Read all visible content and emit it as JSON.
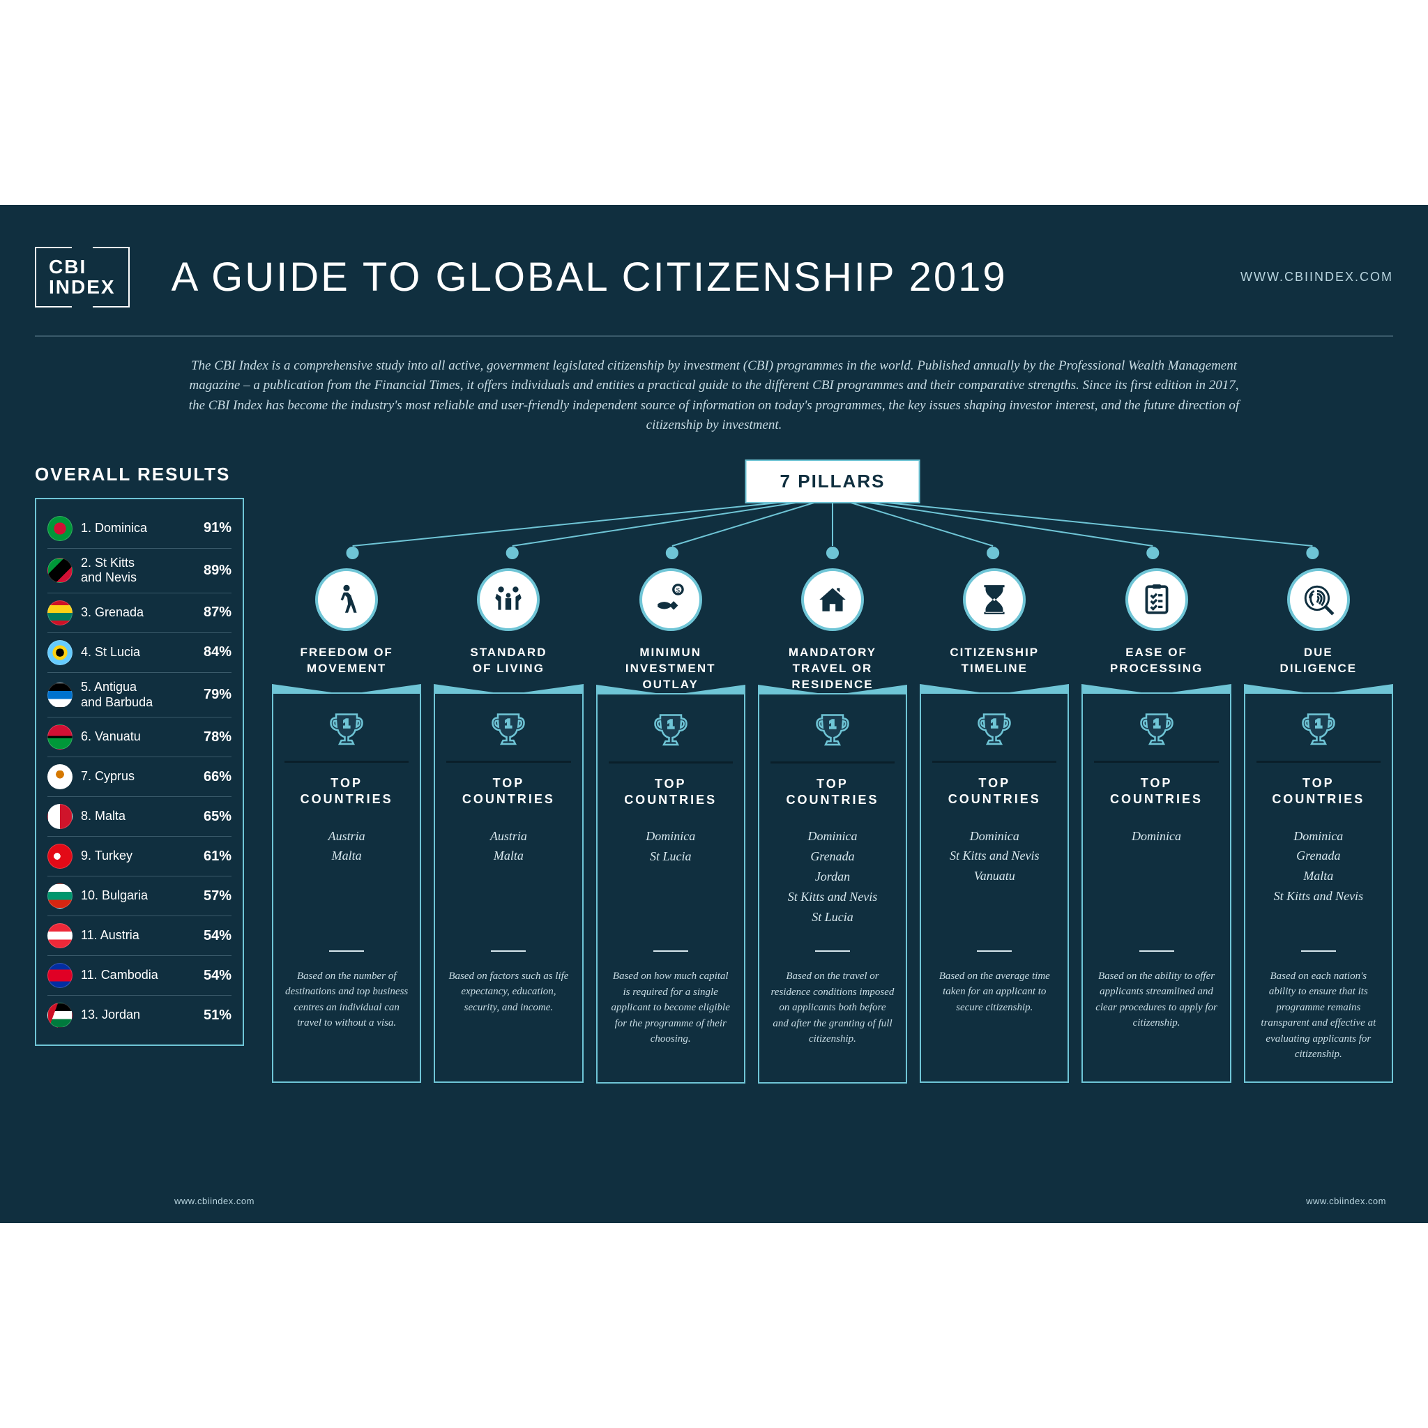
{
  "logo": "CBI\nINDEX",
  "title": "A GUIDE TO GLOBAL CITIZENSHIP 2019",
  "url": "WWW.CBIINDEX.COM",
  "url_small": "www.cbiindex.com",
  "intro": "The CBI Index is a comprehensive study into all active, government legislated citizenship by investment (CBI) programmes in the world. Published annually by the Professional Wealth Management magazine – a publication from the Financial Times, it offers individuals and entities a practical guide to the different CBI programmes and their comparative strengths. Since its first edition in 2017, the CBI Index has become the industry's most reliable and user-friendly independent source of information on today's programmes, the key issues shaping investor interest, and the future direction of citizenship by investment.",
  "sidebar_title": "OVERALL RESULTS",
  "pillars_hub": "7 PILLARS",
  "top_countries_label": "TOP\nCOUNTRIES",
  "results": [
    {
      "rank": "1.",
      "name": "Dominica",
      "pct": "91%",
      "flag": "radial-gradient(circle at center,#d21034 36%,transparent 36%),linear-gradient(#009739,#009739)"
    },
    {
      "rank": "2.",
      "name": "St Kitts\nand Nevis",
      "pct": "89%",
      "flag": "linear-gradient(135deg,#009739 33%,#000 33% 67%,#d21034 67%)"
    },
    {
      "rank": "3.",
      "name": "Grenada",
      "pct": "87%",
      "flag": "linear-gradient(#ce1126 18%,#fcd116 18% 50%,#007a5e 50% 82%,#ce1126 82%)"
    },
    {
      "rank": "4.",
      "name": "St Lucia",
      "pct": "84%",
      "flag": "radial-gradient(circle at center,#000 24%,#fcd116 24% 44%,transparent 44%),linear-gradient(#66ccff,#66ccff)"
    },
    {
      "rank": "5.",
      "name": "Antigua\nand Barbuda",
      "pct": "79%",
      "flag": "linear-gradient(#000 33%,#0072ce 33% 66%,#fff 66%),linear-gradient(#ce1126,#ce1126)"
    },
    {
      "rank": "6.",
      "name": "Vanuatu",
      "pct": "78%",
      "flag": "linear-gradient(#d21034 45%,#000 45% 55%,#009739 55%)"
    },
    {
      "rank": "7.",
      "name": "Cyprus",
      "pct": "66%",
      "flag": "radial-gradient(circle at 50% 40%,#d57800 22%,transparent 22%),linear-gradient(#fff,#fff)"
    },
    {
      "rank": "8.",
      "name": "Malta",
      "pct": "65%",
      "flag": "linear-gradient(90deg,#fff 50%,#cf142b 50%)"
    },
    {
      "rank": "9.",
      "name": "Turkey",
      "pct": "61%",
      "flag": "radial-gradient(circle at 38% 50%,#fff 18%,transparent 18%),radial-gradient(circle at 46% 50%,#e30a17 16%,transparent 16%),linear-gradient(#e30a17,#e30a17)"
    },
    {
      "rank": "10.",
      "name": "Bulgaria",
      "pct": "57%",
      "flag": "linear-gradient(#fff 33%,#00966e 33% 66%,#d62612 66%)"
    },
    {
      "rank": "11.",
      "name": "Austria",
      "pct": "54%",
      "flag": "linear-gradient(#ed2939 33%,#fff 33% 66%,#ed2939 66%)"
    },
    {
      "rank": "11.",
      "name": "Cambodia",
      "pct": "54%",
      "flag": "linear-gradient(#032ea1 25%,#e00025 25% 75%,#032ea1 75%)"
    },
    {
      "rank": "13.",
      "name": "Jordan",
      "pct": "51%",
      "flag": "linear-gradient(110deg,#ce1126 30%,transparent 30%),linear-gradient(#000 33%,#fff 33% 66%,#007a3d 66%)"
    }
  ],
  "pillars": [
    {
      "name": "FREEDOM OF\nMOVEMENT",
      "icon": "walk",
      "countries": "Austria\nMalta",
      "desc": "Based on the number of destinations and top business centres an individual can travel to without a visa."
    },
    {
      "name": "STANDARD\nOF LIVING",
      "icon": "family",
      "countries": "Austria\nMalta",
      "desc": "Based on factors such as life expectancy, education, security, and income."
    },
    {
      "name": "MINIMUN\nINVESTMENT\nOUTLAY",
      "icon": "money",
      "countries": "Dominica\nSt Lucia",
      "desc": "Based on how much capital is required for a single applicant to become eligible for the programme of their choosing."
    },
    {
      "name": "MANDATORY\nTRAVEL OR\nRESIDENCE",
      "icon": "house",
      "countries": "Dominica\nGrenada\nJordan\nSt Kitts and Nevis\nSt Lucia",
      "desc": "Based on the travel or residence conditions imposed on applicants both before and after the granting of full citizenship."
    },
    {
      "name": "CITIZENSHIP\nTIMELINE",
      "icon": "hourglass",
      "countries": "Dominica\nSt Kitts and Nevis\nVanuatu",
      "desc": "Based on the average time taken for an applicant to secure citizenship."
    },
    {
      "name": "EASE OF\nPROCESSING",
      "icon": "checklist",
      "countries": "Dominica",
      "desc": "Based on the ability to offer applicants streamlined and clear procedures to apply for citizenship."
    },
    {
      "name": "DUE\nDILIGENCE",
      "icon": "fingerprint",
      "countries": "Dominica\nGrenada\nMalta\nSt Kitts and Nevis",
      "desc": "Based on each nation's ability to ensure that its programme remains transparent and effective at evaluating applicants for citizenship."
    }
  ],
  "colors": {
    "bg": "#102f3f",
    "accent": "#6fc5d6"
  }
}
